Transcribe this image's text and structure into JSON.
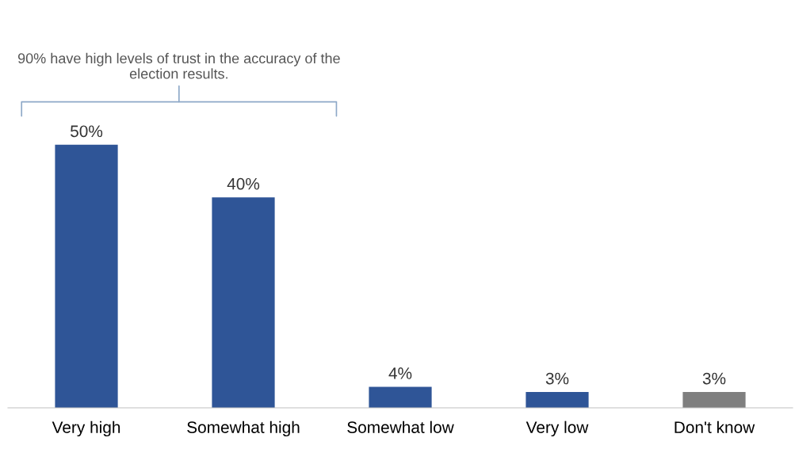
{
  "chart_data": {
    "type": "bar",
    "categories": [
      "Very high",
      "Somewhat high",
      "Somewhat low",
      "Very low",
      "Don't know"
    ],
    "values": [
      50,
      40,
      4,
      3,
      3
    ],
    "colors": [
      "#2f5597",
      "#2f5597",
      "#2f5597",
      "#2f5597",
      "#7f7f7f"
    ],
    "value_labels": [
      "50%",
      "40%",
      "4%",
      "3%",
      "3%"
    ],
    "annotations": [
      "90% have high levels of trust in the accuracy of the election results."
    ],
    "grid": false,
    "legend": false
  }
}
